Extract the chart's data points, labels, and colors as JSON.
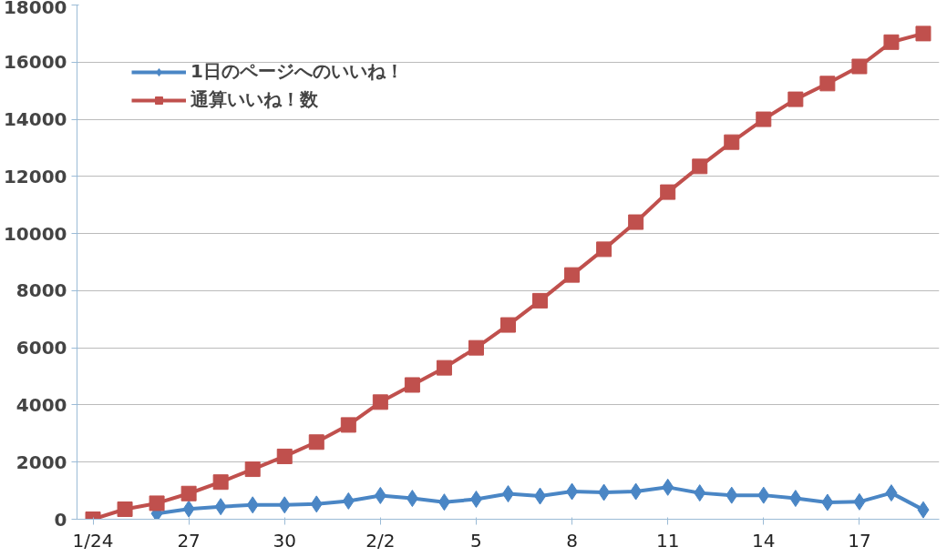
{
  "chart_data": {
    "type": "line",
    "categories": [
      "1/24",
      null,
      null,
      "27",
      null,
      null,
      "30",
      null,
      null,
      "2/2",
      null,
      null,
      "5",
      null,
      null,
      "8",
      null,
      null,
      "11",
      null,
      null,
      "14",
      null,
      null,
      "17",
      null,
      null
    ],
    "series": [
      {
        "name": "1日のページへのいいね！",
        "color": "#4a86c5",
        "marker": "diamond",
        "values": [
          null,
          null,
          200,
          360,
          440,
          500,
          500,
          530,
          640,
          830,
          730,
          600,
          700,
          890,
          810,
          970,
          940,
          970,
          1120,
          920,
          840,
          840,
          730,
          590,
          610,
          920,
          330
        ]
      },
      {
        "name": "通算いいね！数",
        "color": "#c0504d",
        "marker": "square",
        "values": [
          0,
          350,
          560,
          900,
          1300,
          1750,
          2200,
          2700,
          3300,
          4100,
          4700,
          5300,
          6000,
          6800,
          7650,
          8550,
          9450,
          10400,
          11450,
          12350,
          13200,
          14000,
          14700,
          15250,
          15850,
          16700,
          17000
        ]
      }
    ],
    "ylim": [
      0,
      18000
    ],
    "yticks": [
      0,
      2000,
      4000,
      6000,
      8000,
      10000,
      12000,
      14000,
      16000,
      18000
    ],
    "grid": "y",
    "legend": "top left",
    "line_style": "solid"
  }
}
